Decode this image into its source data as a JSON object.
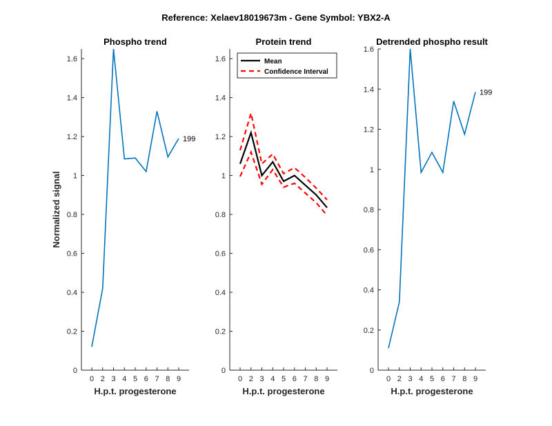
{
  "figure_title": "Reference:  Xelaev18019673m - Gene Symbol:  YBX2-A",
  "colors": {
    "series": "#0072bd",
    "mean": "#000000",
    "ci": "#ff0000",
    "axis": "#262626"
  },
  "chart_data": [
    {
      "type": "line",
      "title": "Phospho trend",
      "xlabel": "H.p.t. progesterone",
      "ylabel": "Normalized signal",
      "x": [
        0,
        2,
        3,
        4,
        5,
        6,
        7,
        8,
        9
      ],
      "xticks": [
        "0",
        "2",
        "3",
        "4",
        "5",
        "6",
        "7",
        "8",
        "9"
      ],
      "ylim": [
        0,
        1.65
      ],
      "yticks": [
        "0",
        "0.2",
        "0.4",
        "0.6",
        "0.8",
        "1",
        "1.2",
        "1.4",
        "1.6"
      ],
      "series": [
        {
          "values": [
            0.12,
            0.42,
            1.65,
            1.085,
            1.09,
            1.02,
            1.33,
            1.095,
            1.19
          ],
          "end_label": "199"
        }
      ]
    },
    {
      "type": "line",
      "title": "Protein trend",
      "xlabel": "H.p.t. progesterone",
      "ylabel": "",
      "x": [
        0,
        2,
        3,
        4,
        5,
        6,
        7,
        8,
        9
      ],
      "xticks": [
        "0",
        "2",
        "3",
        "4",
        "5",
        "6",
        "7",
        "8",
        "9"
      ],
      "ylim": [
        0,
        1.65
      ],
      "yticks": [
        "0",
        "0.2",
        "0.4",
        "0.6",
        "0.8",
        "1",
        "1.2",
        "1.4",
        "1.6"
      ],
      "legend": {
        "position": "top-left",
        "entries": [
          "Mean",
          "Confidence Interval"
        ]
      },
      "series": [
        {
          "name": "Mean",
          "style": "solid",
          "values": [
            1.06,
            1.22,
            1.0,
            1.07,
            0.97,
            1.0,
            0.95,
            0.9,
            0.835
          ]
        },
        {
          "name": "Confidence Interval",
          "style": "dashed",
          "values": [
            1.13,
            1.32,
            1.06,
            1.11,
            1.01,
            1.04,
            0.99,
            0.935,
            0.875
          ]
        },
        {
          "name": "Confidence Interval",
          "style": "dashed",
          "values": [
            0.995,
            1.12,
            0.955,
            1.03,
            0.94,
            0.96,
            0.91,
            0.86,
            0.795
          ]
        }
      ]
    },
    {
      "type": "line",
      "title": "Detrended phospho result",
      "xlabel": "H.p.t. progesterone",
      "ylabel": "",
      "x": [
        0,
        2,
        3,
        4,
        5,
        6,
        7,
        8,
        9
      ],
      "xticks": [
        "0",
        "2",
        "3",
        "4",
        "5",
        "6",
        "7",
        "8",
        "9"
      ],
      "ylim": [
        0,
        1.6
      ],
      "yticks": [
        "0",
        "0.2",
        "0.4",
        "0.6",
        "0.8",
        "1",
        "1.2",
        "1.4",
        "1.6"
      ],
      "series": [
        {
          "values": [
            0.11,
            0.34,
            1.6,
            0.985,
            1.085,
            0.985,
            1.34,
            1.175,
            1.385
          ],
          "end_label": "199"
        }
      ]
    }
  ]
}
